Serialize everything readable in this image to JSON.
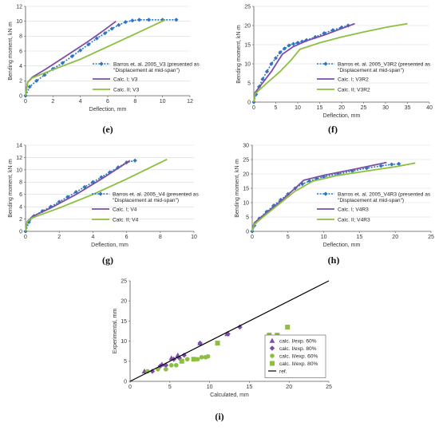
{
  "colors": {
    "exp": "#2e75c2",
    "calc1": "#7b4fa6",
    "calc2": "#8cbf3f",
    "ref": "#000000"
  },
  "chart_data": [
    {
      "id": "e",
      "panel_label": "(e)",
      "type": "line",
      "xlabel": "Deflection, mm",
      "ylabel": "Bending moment, kN·m",
      "xlim": [
        0,
        12
      ],
      "ylim": [
        0,
        12
      ],
      "xticks": [
        0,
        2,
        4,
        6,
        8,
        10,
        12
      ],
      "yticks": [
        0,
        2,
        4,
        6,
        8,
        10,
        12
      ],
      "legend_position": "right",
      "series": [
        {
          "name": "Barros et. al. 2005_V3 (presented as",
          "name2": "\"Displacement at mid-span\")",
          "style": "exp",
          "x": [
            0,
            0.3,
            0.8,
            1.4,
            2.0,
            2.7,
            3.4,
            4.0,
            4.6,
            5.2,
            5.8,
            6.3,
            6.8,
            7.3,
            7.8,
            8.3,
            9.0,
            10.0,
            11.0
          ],
          "y": [
            0,
            1.2,
            2.0,
            2.8,
            3.6,
            4.4,
            5.3,
            6.1,
            6.9,
            7.7,
            8.4,
            9.0,
            9.5,
            9.9,
            10.1,
            10.2,
            10.2,
            10.2,
            10.2
          ]
        },
        {
          "name": "Calc. I; V3",
          "style": "calc1",
          "x": [
            0,
            0.15,
            0.5,
            1.5,
            3.0,
            4.5,
            5.8,
            6.6
          ],
          "y": [
            0,
            1.8,
            2.5,
            3.6,
            5.4,
            7.2,
            8.9,
            10.0
          ]
        },
        {
          "name": "Calc. II; V3",
          "style": "calc2",
          "x": [
            0,
            0.15,
            0.5,
            2.0,
            4.0,
            6.0,
            8.0,
            10.2
          ],
          "y": [
            0,
            1.8,
            2.4,
            3.5,
            4.9,
            6.6,
            8.3,
            10.2
          ]
        }
      ]
    },
    {
      "id": "f",
      "panel_label": "(f)",
      "type": "line",
      "xlabel": "Deflection, mm",
      "ylabel": "Bending moment, kN·m",
      "xlim": [
        0,
        40
      ],
      "ylim": [
        0,
        25
      ],
      "xticks": [
        0,
        5,
        10,
        15,
        20,
        25,
        30,
        35,
        40
      ],
      "yticks": [
        0,
        5,
        10,
        15,
        20,
        25
      ],
      "legend_position": "right",
      "series": [
        {
          "name": "Barros et. al. 2005_V3R2 (presented as",
          "name2": "\"Displacement at mid-span\")",
          "style": "exp",
          "x": [
            0,
            0.5,
            1.2,
            2.0,
            3.0,
            4.0,
            5.0,
            6.0,
            7.0,
            8.0,
            9.0,
            10.0,
            11.0,
            12.0,
            14.0,
            16.0,
            18.0,
            20.0,
            21.5
          ],
          "y": [
            0,
            2.0,
            4.0,
            6.0,
            8.0,
            10.0,
            11.5,
            13.0,
            14.0,
            14.8,
            15.2,
            15.5,
            15.8,
            16.2,
            17.0,
            18.0,
            18.8,
            19.5,
            20.0
          ]
        },
        {
          "name": "Calc. I; V3R2",
          "style": "calc1",
          "x": [
            0,
            0.3,
            2.0,
            4.0,
            6.5,
            9.0,
            12.0,
            16.0,
            20.0,
            23.0
          ],
          "y": [
            0,
            2.5,
            5.0,
            8.0,
            12.5,
            14.5,
            16.0,
            17.5,
            19.2,
            20.5
          ]
        },
        {
          "name": "Calc. II; V3R2",
          "style": "calc2",
          "x": [
            0,
            0.3,
            3.0,
            6.0,
            8.5,
            10.5,
            15.0,
            20.0,
            25.0,
            30.0,
            35.0
          ],
          "y": [
            0,
            2.2,
            5.0,
            8.0,
            11.0,
            13.8,
            15.5,
            17.0,
            18.3,
            19.5,
            20.5
          ]
        }
      ]
    },
    {
      "id": "g",
      "panel_label": "(g)",
      "type": "line",
      "xlabel": "Deflection, mm",
      "ylabel": "Bending moment, kN·m",
      "xlim": [
        0,
        10
      ],
      "ylim": [
        0,
        14
      ],
      "xticks": [
        0,
        2,
        4,
        6,
        8,
        10
      ],
      "yticks": [
        0,
        2,
        4,
        6,
        8,
        10,
        12,
        14
      ],
      "legend_position": "right",
      "series": [
        {
          "name": "Barros et. al. 2005_V4 (presented as",
          "name2": "\"Displacement at mid-span\")",
          "style": "exp",
          "x": [
            0,
            0.2,
            0.5,
            1.0,
            1.5,
            2.0,
            2.5,
            3.0,
            3.5,
            4.0,
            4.5,
            5.0,
            5.5,
            6.0,
            6.5
          ],
          "y": [
            0,
            1.5,
            2.5,
            3.3,
            4.0,
            4.8,
            5.6,
            6.4,
            7.2,
            8.0,
            8.8,
            9.6,
            10.4,
            11.2,
            11.5
          ]
        },
        {
          "name": "Calc. I; V4",
          "style": "calc1",
          "x": [
            0,
            0.1,
            0.4,
            1.5,
            3.0,
            4.5,
            6.2
          ],
          "y": [
            0,
            1.6,
            2.4,
            3.8,
            6.0,
            8.5,
            11.5
          ]
        },
        {
          "name": "Calc. II; V4",
          "style": "calc2",
          "x": [
            0,
            0.1,
            0.4,
            2.0,
            4.0,
            6.0,
            8.4
          ],
          "y": [
            0,
            1.6,
            2.2,
            3.8,
            6.0,
            8.5,
            11.7
          ]
        }
      ]
    },
    {
      "id": "h",
      "panel_label": "(h)",
      "type": "line",
      "xlabel": "Deflection, mm",
      "ylabel": "Bending moment, kN·m",
      "xlim": [
        0,
        25
      ],
      "ylim": [
        0,
        30
      ],
      "xticks": [
        0,
        5,
        10,
        15,
        20,
        25
      ],
      "yticks": [
        0,
        5,
        10,
        15,
        20,
        25,
        30
      ],
      "legend_position": "right",
      "series": [
        {
          "name": "Barros et. al. 2005_V4R3 (presented as",
          "name2": "\"Displacement at mid-span\")",
          "style": "exp",
          "x": [
            0,
            0.3,
            1.0,
            2.0,
            3.0,
            4.0,
            5.0,
            6.0,
            7.0,
            8.0,
            9.0,
            10.0,
            12.0,
            14.0,
            16.0,
            18.0,
            19.5,
            20.5
          ],
          "y": [
            0,
            2.0,
            4.5,
            6.8,
            9.0,
            11.0,
            13.0,
            15.0,
            16.5,
            17.5,
            18.3,
            19.0,
            20.0,
            21.0,
            22.0,
            22.8,
            23.3,
            23.5
          ]
        },
        {
          "name": "Calc. I; V4R3",
          "style": "calc1",
          "x": [
            0,
            0.3,
            2.0,
            4.0,
            6.0,
            7.2,
            10.0,
            14.0,
            18.8
          ],
          "y": [
            0,
            3.0,
            6.5,
            10.5,
            15.0,
            17.8,
            19.5,
            21.5,
            24.0
          ]
        },
        {
          "name": "Calc. II; V4R3",
          "style": "calc2",
          "x": [
            0,
            0.3,
            2.0,
            4.0,
            6.0,
            8.5,
            12.0,
            16.0,
            20.0,
            22.8
          ],
          "y": [
            0,
            2.5,
            6.0,
            10.0,
            14.0,
            17.5,
            19.5,
            21.0,
            22.5,
            23.8
          ]
        }
      ]
    },
    {
      "id": "i",
      "panel_label": "(i)",
      "type": "scatter",
      "xlabel": "Calculated, mm",
      "ylabel": "Experimental, mm",
      "xlim": [
        0,
        25
      ],
      "ylim": [
        0,
        25
      ],
      "xticks": [
        0,
        5,
        10,
        15,
        20,
        25
      ],
      "yticks": [
        0,
        5,
        10,
        15,
        20,
        25
      ],
      "legend_position": "right",
      "series": [
        {
          "name": "calc. I/exp. 60%",
          "style": "tri",
          "x": [
            1.8,
            4.0,
            5.2,
            6.0,
            8.8,
            12.2
          ],
          "y": [
            2.5,
            4.2,
            5.8,
            6.5,
            9.5,
            11.8
          ]
        },
        {
          "name": "calc. I/exp. 80%",
          "style": "dia",
          "x": [
            2.8,
            3.8,
            4.5,
            5.5,
            6.2,
            6.8,
            8.8,
            12.3,
            13.8
          ],
          "y": [
            2.5,
            3.8,
            4.0,
            5.5,
            5.8,
            6.5,
            9.5,
            11.8,
            13.5
          ]
        },
        {
          "name": "calc. II/exp. 60%",
          "style": "circ",
          "x": [
            2.2,
            3.5,
            4.5,
            5.2,
            5.8,
            6.5,
            7.2,
            8.5,
            9.0,
            9.5,
            9.8
          ],
          "y": [
            2.5,
            3.0,
            3.0,
            4.0,
            4.0,
            5.0,
            5.5,
            5.5,
            6.0,
            6.0,
            6.2
          ]
        },
        {
          "name": "calc. II/exp. 80%",
          "style": "sq",
          "x": [
            6.5,
            8.0,
            11.0,
            17.5,
            18.5,
            19.8
          ],
          "y": [
            5.0,
            5.5,
            9.5,
            11.5,
            11.5,
            13.5
          ]
        },
        {
          "name": "ref.",
          "style": "ref",
          "x": [
            0,
            25
          ],
          "y": [
            0,
            25
          ]
        }
      ]
    }
  ]
}
